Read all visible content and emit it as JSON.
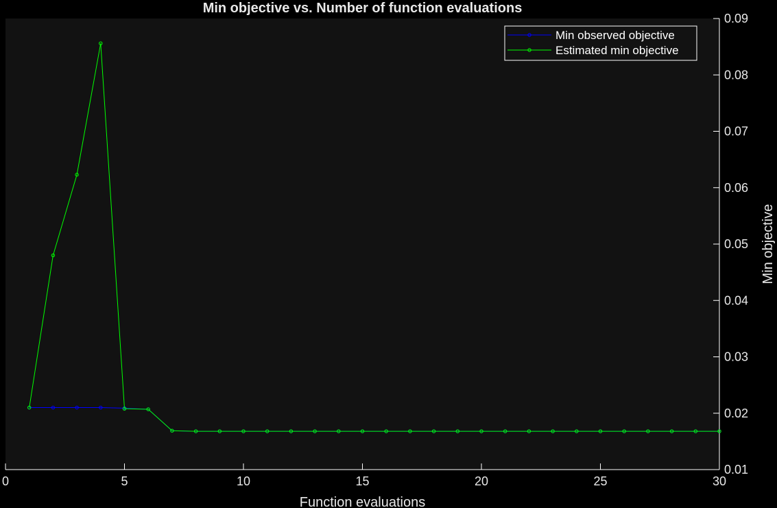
{
  "chart_data": {
    "type": "line",
    "title": "Min objective vs. Number of function evaluations",
    "xlabel": "Function evaluations",
    "ylabel": "Min objective",
    "xlim": [
      0,
      30
    ],
    "ylim": [
      0.01,
      0.09
    ],
    "xticks": [
      0,
      5,
      10,
      15,
      20,
      25,
      30
    ],
    "yticks": [
      "0.01",
      "0.02",
      "0.03",
      "0.04",
      "0.05",
      "0.06",
      "0.07",
      "0.08",
      "0.09"
    ],
    "y_axis_side": "right",
    "grid": false,
    "legend_position": "top-right",
    "background": "#121212",
    "x": [
      1,
      2,
      3,
      4,
      5,
      6,
      7,
      8,
      9,
      10,
      11,
      12,
      13,
      14,
      15,
      16,
      17,
      18,
      19,
      20,
      21,
      22,
      23,
      24,
      25,
      26,
      27,
      28,
      29,
      30
    ],
    "series": [
      {
        "name": "Min observed objective",
        "color": "#0000ff",
        "values": [
          0.021,
          0.021,
          0.021,
          0.021,
          0.0209,
          0.0207,
          0.0169,
          0.0168,
          0.0168,
          0.0168,
          0.0168,
          0.0168,
          0.0168,
          0.0168,
          0.0168,
          0.0168,
          0.0168,
          0.0168,
          0.0168,
          0.0168,
          0.0168,
          0.0168,
          0.0168,
          0.0168,
          0.0168,
          0.0168,
          0.0168,
          0.0168,
          0.0168,
          0.0168
        ]
      },
      {
        "name": "Estimated min objective",
        "color": "#00ff00",
        "values": [
          0.021,
          0.048,
          0.0623,
          0.0856,
          0.0208,
          0.0207,
          0.0169,
          0.0168,
          0.0168,
          0.0168,
          0.0168,
          0.0168,
          0.0168,
          0.0168,
          0.0168,
          0.0168,
          0.0168,
          0.0168,
          0.0168,
          0.0168,
          0.0168,
          0.0168,
          0.0168,
          0.0168,
          0.0168,
          0.0168,
          0.0168,
          0.0168,
          0.0168,
          0.0168
        ]
      }
    ]
  }
}
